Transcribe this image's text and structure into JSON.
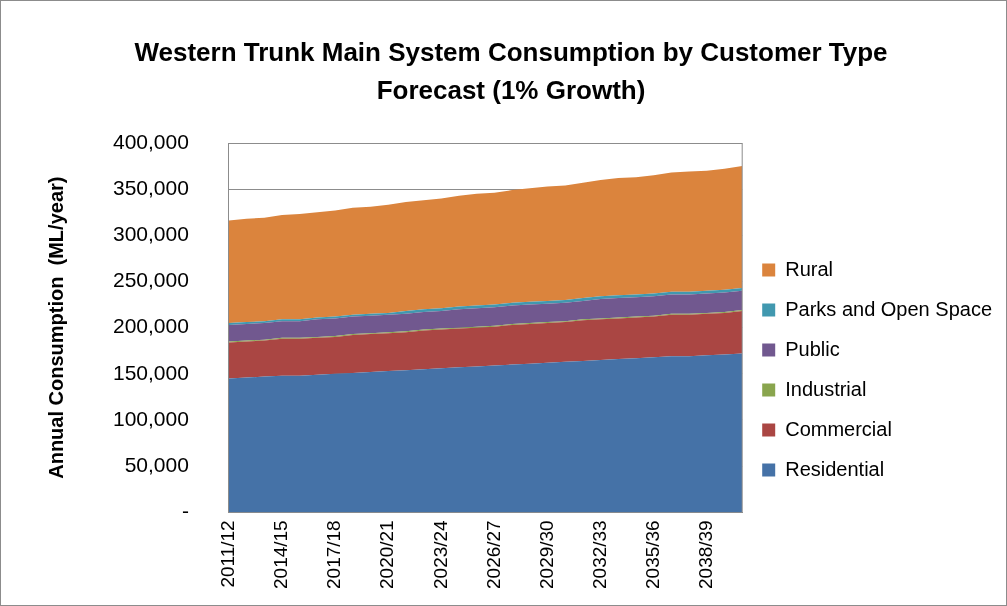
{
  "chart_data": {
    "type": "area",
    "stacked": true,
    "title": "Western Trunk Main System Consumption by Customer Type Forecast (1% Growth)",
    "ylabel": "Annual Consumption  (ML/year)",
    "categories": [
      "2011/12",
      null,
      null,
      "2014/15",
      null,
      null,
      "2017/18",
      null,
      null,
      "2020/21",
      null,
      null,
      "2023/24",
      null,
      null,
      "2026/27",
      null,
      null,
      "2029/30",
      null,
      null,
      "2032/33",
      null,
      null,
      "2035/36",
      null,
      null,
      "2038/39",
      null,
      null
    ],
    "series": [
      {
        "name": "Residential",
        "color": "#4572a7",
        "values": [
          145000,
          146000,
          147000,
          148000,
          148000,
          149000,
          150000,
          151000,
          152000,
          153000,
          154000,
          155000,
          156000,
          157000,
          158000,
          159000,
          160000,
          161000,
          162000,
          163000,
          164000,
          165000,
          166000,
          167000,
          168000,
          169000,
          169000,
          170000,
          171000,
          172000
        ]
      },
      {
        "name": "Commercial",
        "color": "#aa4643",
        "values": [
          39000,
          39000,
          39000,
          40000,
          40000,
          40000,
          40000,
          41000,
          41000,
          41000,
          41000,
          42000,
          42000,
          42000,
          42000,
          42000,
          43000,
          43000,
          43000,
          43000,
          44000,
          44000,
          44000,
          44000,
          44000,
          45000,
          45000,
          45000,
          45000,
          46000
        ]
      },
      {
        "name": "Industrial",
        "color": "#89a54e",
        "values": [
          1000,
          1000,
          1000,
          1000,
          1000,
          1000,
          1000,
          1000,
          1000,
          1000,
          1000,
          1000,
          1000,
          1000,
          1000,
          1000,
          1000,
          1000,
          1000,
          1000,
          1000,
          1000,
          1000,
          1000,
          1000,
          1000,
          1000,
          1000,
          1000,
          1000
        ]
      },
      {
        "name": "Public",
        "color": "#71588f",
        "values": [
          18000,
          18000,
          18000,
          18000,
          18000,
          19000,
          19000,
          19000,
          19000,
          19000,
          19000,
          19000,
          19000,
          20000,
          20000,
          20000,
          20000,
          20000,
          20000,
          20000,
          20000,
          21000,
          21000,
          21000,
          21000,
          21000,
          21000,
          21000,
          21000,
          21000
        ]
      },
      {
        "name": "Parks and Open Space",
        "color": "#4198af",
        "values": [
          2000,
          2000,
          2000,
          2000,
          2000,
          2000,
          2000,
          2000,
          2000,
          2000,
          3000,
          3000,
          3000,
          3000,
          3000,
          3000,
          3000,
          3000,
          3000,
          3000,
          3000,
          3000,
          3000,
          3000,
          3000,
          3000,
          3000,
          3000,
          3000,
          3000
        ]
      },
      {
        "name": "Rural",
        "color": "#db843d",
        "values": [
          111000,
          112000,
          112000,
          113000,
          114000,
          114000,
          115000,
          116000,
          116000,
          117000,
          118000,
          118000,
          119000,
          120000,
          121000,
          121000,
          122000,
          123000,
          124000,
          124000,
          125000,
          126000,
          127000,
          127000,
          128000,
          129000,
          130000,
          130000,
          131000,
          132000
        ]
      }
    ],
    "ylim": [
      0,
      400000
    ],
    "yticks": [
      {
        "value": 0,
        "label": "-"
      },
      {
        "value": 50000,
        "label": "50,000"
      },
      {
        "value": 100000,
        "label": "100,000"
      },
      {
        "value": 150000,
        "label": "150,000"
      },
      {
        "value": 200000,
        "label": "200,000"
      },
      {
        "value": 250000,
        "label": "250,000"
      },
      {
        "value": 300000,
        "label": "300,000"
      },
      {
        "value": 350000,
        "label": "350,000"
      },
      {
        "value": 400000,
        "label": "400,000"
      }
    ],
    "grid": "y",
    "legend": "right",
    "marker": "none"
  }
}
